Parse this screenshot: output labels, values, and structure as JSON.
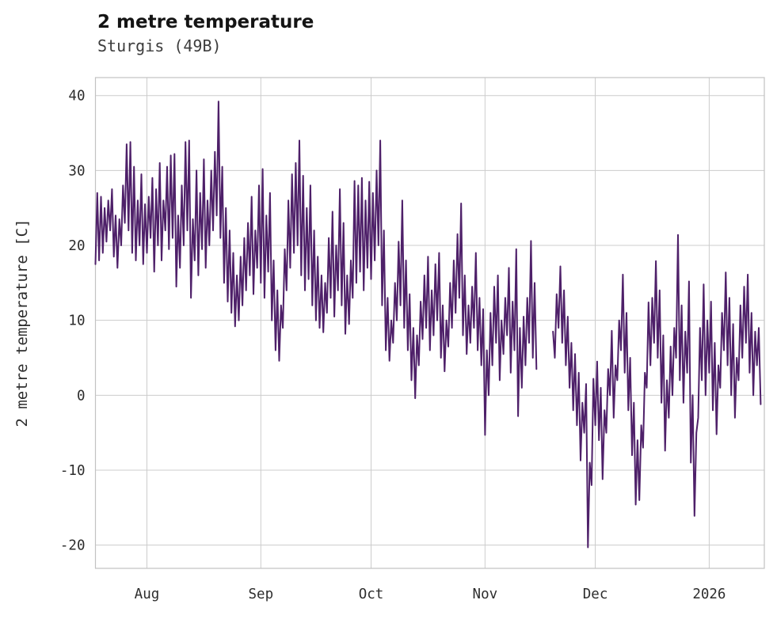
{
  "header": {
    "title": "2 metre temperature",
    "subtitle": "Sturgis (49B)"
  },
  "chart_data": {
    "type": "line",
    "title": "2 metre temperature",
    "subtitle": "Sturgis (49B)",
    "xlabel": "",
    "ylabel": "2 metre temperature [C]",
    "line_color": "#4e2069",
    "grid_color": "#cccccc",
    "border_color": "#c2c2c2",
    "grid": true,
    "legend": "none",
    "ylim": [
      -23.1,
      42.4
    ],
    "x_range_days": [
      0,
      182
    ],
    "sample_interval_days": 0.5,
    "y_ticks": [
      {
        "label": "-20",
        "value": -20
      },
      {
        "label": "-10",
        "value": -10
      },
      {
        "label": "0",
        "value": 0
      },
      {
        "label": "10",
        "value": 10
      },
      {
        "label": "20",
        "value": 20
      },
      {
        "label": "30",
        "value": 30
      },
      {
        "label": "40",
        "value": 40
      }
    ],
    "x_ticks": [
      {
        "label": "Aug",
        "day": 14
      },
      {
        "label": "Sep",
        "day": 45
      },
      {
        "label": "Oct",
        "day": 75
      },
      {
        "label": "Nov",
        "day": 106
      },
      {
        "label": "Dec",
        "day": 136
      },
      {
        "label": "2026",
        "day": 167
      }
    ],
    "values": [
      17.5,
      27,
      18,
      26.5,
      19,
      25,
      20.5,
      26,
      22,
      27.5,
      18.5,
      24,
      17,
      23.5,
      20,
      28,
      23,
      33.5,
      22,
      33.8,
      19,
      30.5,
      18,
      26,
      20,
      29.5,
      17.5,
      25.5,
      19,
      26.5,
      21,
      29,
      16.5,
      27.5,
      20,
      31,
      18,
      26,
      22,
      30.5,
      19.5,
      32,
      21,
      32.2,
      14.5,
      24,
      17,
      28,
      20,
      33.8,
      22,
      34,
      13,
      23.5,
      18,
      30,
      16,
      27,
      19.5,
      31.5,
      17,
      26,
      20,
      30,
      22,
      32.5,
      24,
      39.2,
      21,
      30.5,
      15,
      25,
      12.5,
      22,
      11,
      19,
      9.2,
      16,
      10,
      18.5,
      12,
      21,
      14,
      23,
      16,
      26.5,
      13.5,
      22,
      17,
      28,
      15,
      30.2,
      13,
      24,
      16.5,
      27,
      10,
      18,
      6,
      14,
      4.6,
      12,
      9,
      19.5,
      14,
      26,
      17,
      29.5,
      19,
      31,
      20,
      34,
      16,
      29.3,
      14,
      25,
      15.5,
      28,
      12,
      22,
      10,
      18.5,
      9,
      16,
      8.4,
      15,
      11,
      21,
      13,
      24.5,
      10.5,
      20,
      14,
      27.5,
      12,
      23,
      8.2,
      16,
      9.5,
      18,
      13,
      28.6,
      15,
      28,
      16.5,
      29,
      14,
      26,
      17,
      28.5,
      15.5,
      27,
      18,
      30,
      20,
      34,
      12,
      22,
      6,
      13,
      4.6,
      10,
      7,
      15,
      10,
      20.5,
      12,
      26,
      9,
      18,
      6,
      13.5,
      2,
      9,
      -0.4,
      8,
      4,
      12.5,
      7.5,
      16,
      9,
      18.5,
      6,
      14,
      8,
      17.5,
      10,
      19,
      5,
      12,
      3.2,
      10,
      6.5,
      15,
      9,
      18,
      11,
      21.5,
      13,
      25.6,
      8,
      16,
      5.5,
      12,
      7,
      14.5,
      9,
      19,
      6,
      13,
      4,
      11.5,
      -5.3,
      6,
      0,
      11,
      4,
      14.5,
      7,
      16,
      2,
      10,
      5.5,
      13,
      8,
      17,
      3,
      12.5,
      6,
      19.5,
      -2.8,
      9,
      1,
      10.5,
      4,
      13,
      7,
      20.6,
      5,
      15,
      3.5,
      null,
      null,
      null,
      null,
      null,
      null,
      null,
      null,
      8.5,
      5,
      13.5,
      9,
      17.2,
      7,
      14,
      4,
      10.5,
      1,
      7,
      -2,
      5.5,
      -4,
      3,
      -8.7,
      -1,
      -5,
      1.5,
      -20.3,
      -9,
      -12,
      2.2,
      -4,
      4.5,
      -6,
      1,
      -11.2,
      -2,
      -5,
      3.5,
      0,
      8.6,
      -3,
      4,
      2,
      10,
      6,
      16.1,
      3,
      11,
      -2,
      5,
      -8,
      -1,
      -14.6,
      -6,
      -14,
      -4,
      -7,
      3,
      1,
      12.4,
      4,
      13,
      7,
      17.9,
      5,
      14,
      -1,
      8,
      -7.4,
      2,
      -3,
      6.5,
      0,
      9,
      5,
      21.4,
      2,
      12,
      -1,
      8.5,
      3,
      15.2,
      -9,
      0,
      -16.1,
      -5,
      -3,
      9,
      2,
      14.8,
      0,
      10,
      3,
      12.5,
      -2,
      7,
      -5.2,
      4,
      1,
      11,
      6,
      16.4,
      4,
      13,
      0,
      9.5,
      -3,
      5,
      2,
      12,
      5,
      14.5,
      7,
      16.1,
      3,
      11,
      0,
      8.5,
      4,
      9,
      -1.2
    ]
  }
}
